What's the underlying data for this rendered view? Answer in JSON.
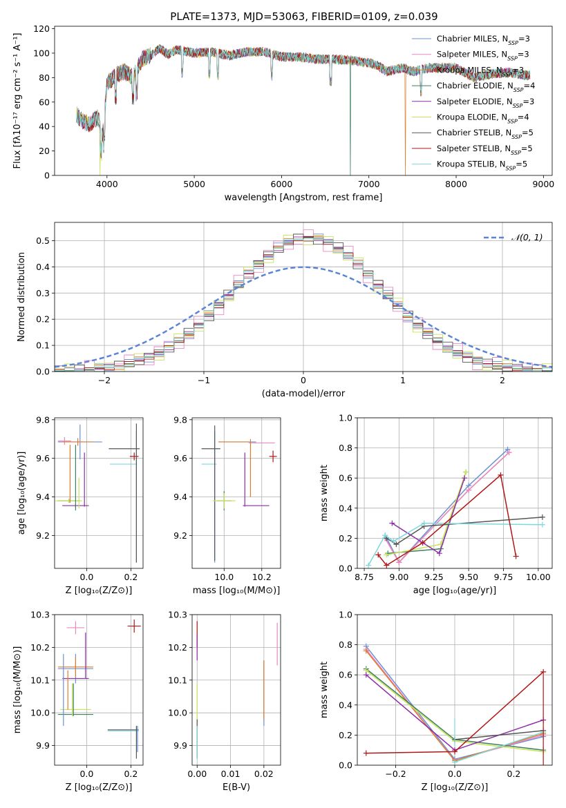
{
  "title": "PLATE=1373, MJD=53063, FIBERID=0109, z=0.039",
  "colors": {
    "Chabrier MILES": "#6a8fd8",
    "Salpeter MILES": "#e987c3",
    "Kroupa MILES": "#e07b2c",
    "Chabrier ELODIE": "#3f7f5f",
    "Salpeter ELODIE": "#8e2ba8",
    "Kroupa ELODIE": "#c6e35a",
    "Chabrier STELIB": "#555555",
    "Salpeter STELIB": "#b01616",
    "Kroupa STELIB": "#7dd8dc"
  },
  "chart_data": [
    {
      "id": "spectrum",
      "type": "line",
      "xlabel": "wavelength [Angstrom, rest frame]",
      "ylabel": "Flux [fλ10⁻¹⁷ erg cm⁻² s⁻¹ A⁻¹]",
      "xlim": [
        3400,
        9100
      ],
      "ylim": [
        0,
        122
      ],
      "xticks": [
        4000,
        5000,
        6000,
        7000,
        8000,
        9000
      ],
      "yticks": [
        0,
        20,
        40,
        60,
        80,
        100,
        120
      ],
      "legend_position": "upper right",
      "legend": [
        "Chabrier MILES, N_SSP=3",
        "Salpeter MILES, N_SSP=3",
        "Kroupa MILES, N_SSP=3",
        "Chabrier ELODIE, N_SSP=4",
        "Salpeter ELODIE, N_SSP=3",
        "Kroupa ELODIE, N_SSP=4",
        "Chabrier STELIB, N_SSP=5",
        "Salpeter STELIB, N_SSP=5",
        "Kroupa STELIB, N_SSP=5"
      ],
      "continuum": {
        "x": [
          3650,
          3700,
          3800,
          3900,
          3950,
          4000,
          4100,
          4200,
          4300,
          4400,
          4500,
          4600,
          4700,
          4800,
          5000,
          5200,
          5400,
          5600,
          5800,
          6000,
          6200,
          6400,
          6600,
          6800,
          7000,
          7100,
          7200,
          7400,
          7500,
          7700,
          8000,
          8200,
          8400,
          8600,
          8800
        ],
        "y": [
          50,
          45,
          42,
          48,
          32,
          75,
          82,
          85,
          80,
          95,
          98,
          104,
          99,
          103,
          100,
          101,
          98,
          101,
          101,
          97,
          97,
          95,
          95,
          94,
          92,
          90,
          85,
          88,
          85,
          88,
          88,
          80,
          83,
          84,
          82
        ]
      },
      "drops": [
        {
          "series": "Kroupa ELODIE",
          "x": 3920
        },
        {
          "series": "Chabrier ELODIE",
          "x": 6790
        },
        {
          "series": "Kroupa MILES",
          "x": 7420
        }
      ]
    },
    {
      "id": "residual_hist",
      "type": "histogram",
      "xlabel": "(data-model)/error",
      "ylabel": "Normed distribution",
      "xlim": [
        -2.5,
        2.5
      ],
      "ylim": [
        0,
        0.57
      ],
      "xticks": [
        -2,
        -1,
        0,
        1,
        2
      ],
      "yticks": [
        0.0,
        0.1,
        0.2,
        0.3,
        0.4,
        0.5
      ],
      "grid": true,
      "legend_position": "upper right",
      "reference": {
        "name": "𝒩(0, 1)",
        "color": "#5b84d6",
        "style": "dashed"
      },
      "bins_edges_from": -2.5,
      "bin_width": 0.1,
      "series_offsets": [
        0.02,
        0.035,
        -0.015,
        0.0,
        0.012,
        0.028,
        -0.02,
        0.008,
        -0.01
      ]
    },
    {
      "id": "age_vs_Z",
      "type": "errorbar",
      "xlabel": "Z [log₁₀(Z/Z⊙)]",
      "ylabel": "age  [log₁₀(age/yr)]",
      "xlim": [
        -0.145,
        0.255
      ],
      "ylim": [
        9.03,
        9.81
      ],
      "xticks": [
        0.0,
        0.2
      ],
      "yticks": [
        9.2,
        9.4,
        9.6,
        9.8
      ],
      "grid": true,
      "points": [
        {
          "series": "Chabrier MILES",
          "x": -0.03,
          "y": 9.685,
          "xerr": 0.1,
          "yerr": 0.09
        },
        {
          "series": "Salpeter MILES",
          "x": -0.1,
          "y": 9.69,
          "xerr": 0.03,
          "yerr": 0.02
        },
        {
          "series": "Kroupa MILES",
          "x": -0.04,
          "y": 9.685,
          "xerr": 0.07,
          "yerr": 0.02
        },
        {
          "series": "Chabrier ELODIE",
          "x": -0.08,
          "y": 9.38,
          "xerr": 0.05,
          "yerr": 0.01
        },
        {
          "series": "Salpeter ELODIE",
          "x": -0.05,
          "y": 9.355,
          "xerr": 0.06,
          "yerr": 0.01
        },
        {
          "series": "Kroupa ELODIE",
          "x": -0.08,
          "y": 9.38,
          "xerr": 0.06,
          "yerr": 0.01
        },
        {
          "series": "Chabrier STELIB",
          "x": 0.17,
          "y": 9.65,
          "xerr": 0.07,
          "yerr": 0.0
        },
        {
          "series": "Salpeter STELIB",
          "x": 0.215,
          "y": 9.61,
          "xerr": 0.02,
          "yerr": 0.02
        },
        {
          "series": "Kroupa STELIB",
          "x": 0.165,
          "y": 9.57,
          "xerr": 0.06,
          "yerr": 0.0
        },
        {
          "series": "Chabrier MILES",
          "x": 0.225,
          "y": 9.4,
          "xerr": 0.0,
          "yerr": 0.34
        },
        {
          "series": "Chabrier STELIB",
          "x": 0.225,
          "y": 9.42,
          "xerr": 0.0,
          "yerr": 0.36
        },
        {
          "series": "Kroupa MILES",
          "x": -0.075,
          "y": 9.52,
          "xerr": 0.0,
          "yerr": 0.15
        },
        {
          "series": "Chabrier ELODIE",
          "x": -0.05,
          "y": 9.5,
          "xerr": 0.0,
          "yerr": 0.17
        },
        {
          "series": "Salpeter ELODIE",
          "x": -0.01,
          "y": 9.49,
          "xerr": 0.0,
          "yerr": 0.14
        },
        {
          "series": "Kroupa ELODIE",
          "x": -0.035,
          "y": 9.42,
          "xerr": 0.0,
          "yerr": 0.08
        }
      ]
    },
    {
      "id": "age_vs_mass",
      "type": "errorbar",
      "xlabel": "mass [log₁₀(M/M⊙)]",
      "ylabel": "",
      "xlim": [
        9.83,
        10.3
      ],
      "ylim": [
        9.03,
        9.81
      ],
      "xticks": [
        10.0,
        10.2
      ],
      "yticks": [
        9.2,
        9.4,
        9.6,
        9.8
      ],
      "grid": true,
      "points": [
        {
          "series": "Chabrier STELIB",
          "x": 9.93,
          "y": 9.65,
          "xerr": 0.05,
          "yerr": 0.0
        },
        {
          "series": "Kroupa STELIB",
          "x": 9.92,
          "y": 9.57,
          "xerr": 0.04,
          "yerr": 0.0
        },
        {
          "series": "Chabrier MILES",
          "x": 9.95,
          "y": 9.4,
          "xerr": 0.0,
          "yerr": 0.34
        },
        {
          "series": "Chabrier STELIB",
          "x": 9.95,
          "y": 9.42,
          "xerr": 0.0,
          "yerr": 0.35
        },
        {
          "series": "Chabrier MILES",
          "x": 10.07,
          "y": 9.685,
          "xerr": 0.1,
          "yerr": 0.0
        },
        {
          "series": "Kroupa MILES",
          "x": 10.05,
          "y": 9.685,
          "xerr": 0.08,
          "yerr": 0.0
        },
        {
          "series": "Salpeter MILES",
          "x": 10.2,
          "y": 9.68,
          "xerr": 0.07,
          "yerr": 0.0
        },
        {
          "series": "Salpeter STELIB",
          "x": 10.26,
          "y": 9.61,
          "xerr": 0.02,
          "yerr": 0.03
        },
        {
          "series": "Chabrier ELODIE",
          "x": 10.0,
          "y": 9.38,
          "xerr": 0.04,
          "yerr": 0.05
        },
        {
          "series": "Kroupa ELODIE",
          "x": 10.0,
          "y": 9.38,
          "xerr": 0.06,
          "yerr": 0.04
        },
        {
          "series": "Salpeter ELODIE",
          "x": 10.17,
          "y": 9.355,
          "xerr": 0.07,
          "yerr": 0.0
        },
        {
          "series": "Salpeter ELODIE",
          "x": 10.11,
          "y": 9.49,
          "xerr": 0.0,
          "yerr": 0.14
        },
        {
          "series": "Kroupa MILES",
          "x": 10.14,
          "y": 9.55,
          "xerr": 0.0,
          "yerr": 0.15
        }
      ]
    },
    {
      "id": "massweight_vs_age",
      "type": "line",
      "xlabel": "age  [log₁₀(age/yr)]",
      "ylabel": "mass weight",
      "xlim": [
        8.7,
        10.1
      ],
      "ylim": [
        0,
        1
      ],
      "xticks": [
        8.75,
        9.0,
        9.25,
        9.5,
        9.75,
        10.0
      ],
      "yticks": [
        0.0,
        0.2,
        0.4,
        0.6,
        0.8,
        1.0
      ],
      "grid": true,
      "series": [
        {
          "name": "Chabrier MILES",
          "x": [
            8.9,
            9.0,
            9.5,
            9.78
          ],
          "y": [
            0.22,
            0.04,
            0.55,
            0.79
          ]
        },
        {
          "name": "Kroupa MILES",
          "x": [
            8.9,
            9.0,
            9.5,
            9.79
          ],
          "y": [
            0.2,
            0.04,
            0.52,
            0.77
          ]
        },
        {
          "name": "Salpeter MILES",
          "x": [
            8.9,
            9.0,
            9.5,
            9.79
          ],
          "y": [
            0.2,
            0.04,
            0.52,
            0.77
          ]
        },
        {
          "name": "Chabrier ELODIE",
          "x": [
            8.92,
            9.3,
            9.48
          ],
          "y": [
            0.1,
            0.13,
            0.64
          ]
        },
        {
          "name": "Kroupa ELODIE",
          "x": [
            8.91,
            9.3,
            9.48
          ],
          "y": [
            0.09,
            0.16,
            0.64
          ]
        },
        {
          "name": "Salpeter ELODIE",
          "x": [
            8.95,
            9.29,
            9.47
          ],
          "y": [
            0.3,
            0.1,
            0.6
          ]
        },
        {
          "name": "Chabrier STELIB",
          "x": [
            8.91,
            8.98,
            9.18,
            10.03
          ],
          "y": [
            0.2,
            0.16,
            0.28,
            0.34
          ]
        },
        {
          "name": "Kroupa STELIB",
          "x": [
            8.78,
            8.9,
            8.96,
            9.18,
            10.03
          ],
          "y": [
            0.02,
            0.22,
            0.18,
            0.3,
            0.29
          ]
        },
        {
          "name": "Salpeter STELIB",
          "x": [
            8.85,
            8.91,
            9.17,
            9.73,
            9.84
          ],
          "y": [
            0.09,
            0.02,
            0.17,
            0.62,
            0.08
          ]
        }
      ]
    },
    {
      "id": "mass_vs_Z",
      "type": "errorbar",
      "xlabel": "Z [log₁₀(Z/Z⊙)]",
      "ylabel": "mass [log₁₀(M/M⊙)]",
      "xlim": [
        -0.145,
        0.255
      ],
      "ylim": [
        9.84,
        10.3
      ],
      "xticks": [
        0.0,
        0.2
      ],
      "yticks": [
        9.9,
        10.0,
        10.1,
        10.2,
        10.3
      ],
      "grid": true,
      "points": [
        {
          "series": "Salpeter MILES",
          "x": -0.05,
          "y": 10.26,
          "xerr": 0.04,
          "yerr": 0.02
        },
        {
          "series": "Salpeter STELIB",
          "x": 0.215,
          "y": 10.265,
          "xerr": 0.03,
          "yerr": 0.02
        },
        {
          "series": "Chabrier MILES",
          "x": -0.05,
          "y": 10.135,
          "xerr": 0.08,
          "yerr": 0.045
        },
        {
          "series": "Kroupa MILES",
          "x": -0.05,
          "y": 10.14,
          "xerr": 0.08,
          "yerr": 0.03
        },
        {
          "series": "Salpeter ELODIE",
          "x": -0.05,
          "y": 10.105,
          "xerr": 0.06,
          "yerr": 0.0
        },
        {
          "series": "Kroupa ELODIE",
          "x": -0.05,
          "y": 10.01,
          "xerr": 0.07,
          "yerr": 0.0
        },
        {
          "series": "Chabrier ELODIE",
          "x": -0.05,
          "y": 9.995,
          "xerr": 0.08,
          "yerr": 0.0
        },
        {
          "series": "Chabrier STELIB",
          "x": 0.165,
          "y": 9.948,
          "xerr": 0.07,
          "yerr": 0.0
        },
        {
          "series": "Kroupa STELIB",
          "x": 0.165,
          "y": 9.945,
          "xerr": 0.07,
          "yerr": 0.0
        },
        {
          "series": "Salpeter ELODIE",
          "x": -0.005,
          "y": 10.175,
          "xerr": 0.0,
          "yerr": 0.07
        },
        {
          "series": "Kroupa MILES",
          "x": -0.085,
          "y": 10.07,
          "xerr": 0.0,
          "yerr": 0.06
        },
        {
          "series": "Chabrier MILES",
          "x": -0.105,
          "y": 10.07,
          "xerr": 0.0,
          "yerr": 0.11
        },
        {
          "series": "Kroupa ELODIE",
          "x": -0.065,
          "y": 10.04,
          "xerr": 0.0,
          "yerr": 0.05
        },
        {
          "series": "Chabrier ELODIE",
          "x": -0.06,
          "y": 10.04,
          "xerr": 0.0,
          "yerr": 0.05
        },
        {
          "series": "Chabrier STELIB",
          "x": 0.225,
          "y": 9.91,
          "xerr": 0.0,
          "yerr": 0.05
        },
        {
          "series": "Chabrier MILES",
          "x": 0.23,
          "y": 9.92,
          "xerr": 0.0,
          "yerr": 0.04
        }
      ]
    },
    {
      "id": "mass_vs_EBV",
      "type": "errorbar",
      "xlabel": "E(B-V)",
      "ylabel": "",
      "xlim": [
        -0.0015,
        0.025
      ],
      "ylim": [
        9.84,
        10.3
      ],
      "xticks": [
        0.0,
        0.01,
        0.02
      ],
      "yticks": [
        9.9,
        10.0,
        10.1,
        10.2,
        10.3
      ],
      "grid": true,
      "points": [
        {
          "series": "Salpeter STELIB",
          "x": 0.0,
          "y": 10.24,
          "xerr": 0.0,
          "yerr": 0.04
        },
        {
          "series": "Salpeter ELODIE",
          "x": 0.0,
          "y": 10.2,
          "xerr": 0.0,
          "yerr": 0.04
        },
        {
          "series": "Kroupa ELODIE",
          "x": 0.0,
          "y": 10.02,
          "xerr": 0.0,
          "yerr": 0.07
        },
        {
          "series": "Chabrier STELIB",
          "x": 0.0,
          "y": 9.92,
          "xerr": 0.0,
          "yerr": 0.06
        },
        {
          "series": "Kroupa STELIB",
          "x": 0.0,
          "y": 9.91,
          "xerr": 0.0,
          "yerr": 0.05
        },
        {
          "series": "Chabrier MILES",
          "x": 0.02,
          "y": 10.06,
          "xerr": 0.0,
          "yerr": 0.1
        },
        {
          "series": "Kroupa MILES",
          "x": 0.02,
          "y": 10.07,
          "xerr": 0.0,
          "yerr": 0.09
        },
        {
          "series": "Salpeter MILES",
          "x": 0.024,
          "y": 10.21,
          "xerr": 0.0,
          "yerr": 0.065
        }
      ]
    },
    {
      "id": "massweight_vs_Z",
      "type": "line",
      "xlabel": "Z [log₁₀(Z/Z⊙)]",
      "ylabel": "mass weight",
      "xlim": [
        -0.33,
        0.33
      ],
      "ylim": [
        0,
        1
      ],
      "xticks": [
        -0.2,
        0.0,
        0.2
      ],
      "yticks": [
        0.0,
        0.2,
        0.4,
        0.6,
        0.8,
        1.0
      ],
      "grid": true,
      "series": [
        {
          "name": "Chabrier MILES",
          "x": [
            -0.3,
            0.0,
            0.3
          ],
          "y": [
            0.79,
            0.04,
            0.19
          ]
        },
        {
          "name": "Salpeter MILES",
          "x": [
            -0.3,
            0.0,
            0.3
          ],
          "y": [
            0.77,
            0.03,
            0.2
          ]
        },
        {
          "name": "Kroupa MILES",
          "x": [
            -0.3,
            0.0,
            0.3
          ],
          "y": [
            0.76,
            0.03,
            0.21
          ]
        },
        {
          "name": "Chabrier ELODIE",
          "x": [
            -0.3,
            0.0,
            0.3
          ],
          "y": [
            0.64,
            0.17,
            0.1
          ]
        },
        {
          "name": "Kroupa ELODIE",
          "x": [
            -0.3,
            0.0,
            0.3
          ],
          "y": [
            0.63,
            0.16,
            0.09
          ]
        },
        {
          "name": "Salpeter ELODIE",
          "x": [
            -0.3,
            0.0,
            0.3
          ],
          "y": [
            0.6,
            0.1,
            0.3
          ]
        },
        {
          "name": "Chabrier STELIB",
          "x": [
            0.0,
            0.3
          ],
          "y": [
            0.17,
            0.23
          ]
        },
        {
          "name": "Kroupa STELIB",
          "x": [
            0.0,
            0.3
          ],
          "y": [
            0.02,
            0.22
          ]
        },
        {
          "name": "Salpeter STELIB",
          "x": [
            -0.3,
            0.0,
            0.3
          ],
          "y": [
            0.08,
            0.09,
            0.62
          ]
        }
      ],
      "errorbars": [
        {
          "series": "Kroupa STELIB",
          "x": 0.0,
          "y": 0.22,
          "yerr": 0.09
        },
        {
          "series": "Salpeter STELIB",
          "x": 0.3,
          "y": 0.3,
          "yerr": 0.3
        }
      ]
    }
  ]
}
